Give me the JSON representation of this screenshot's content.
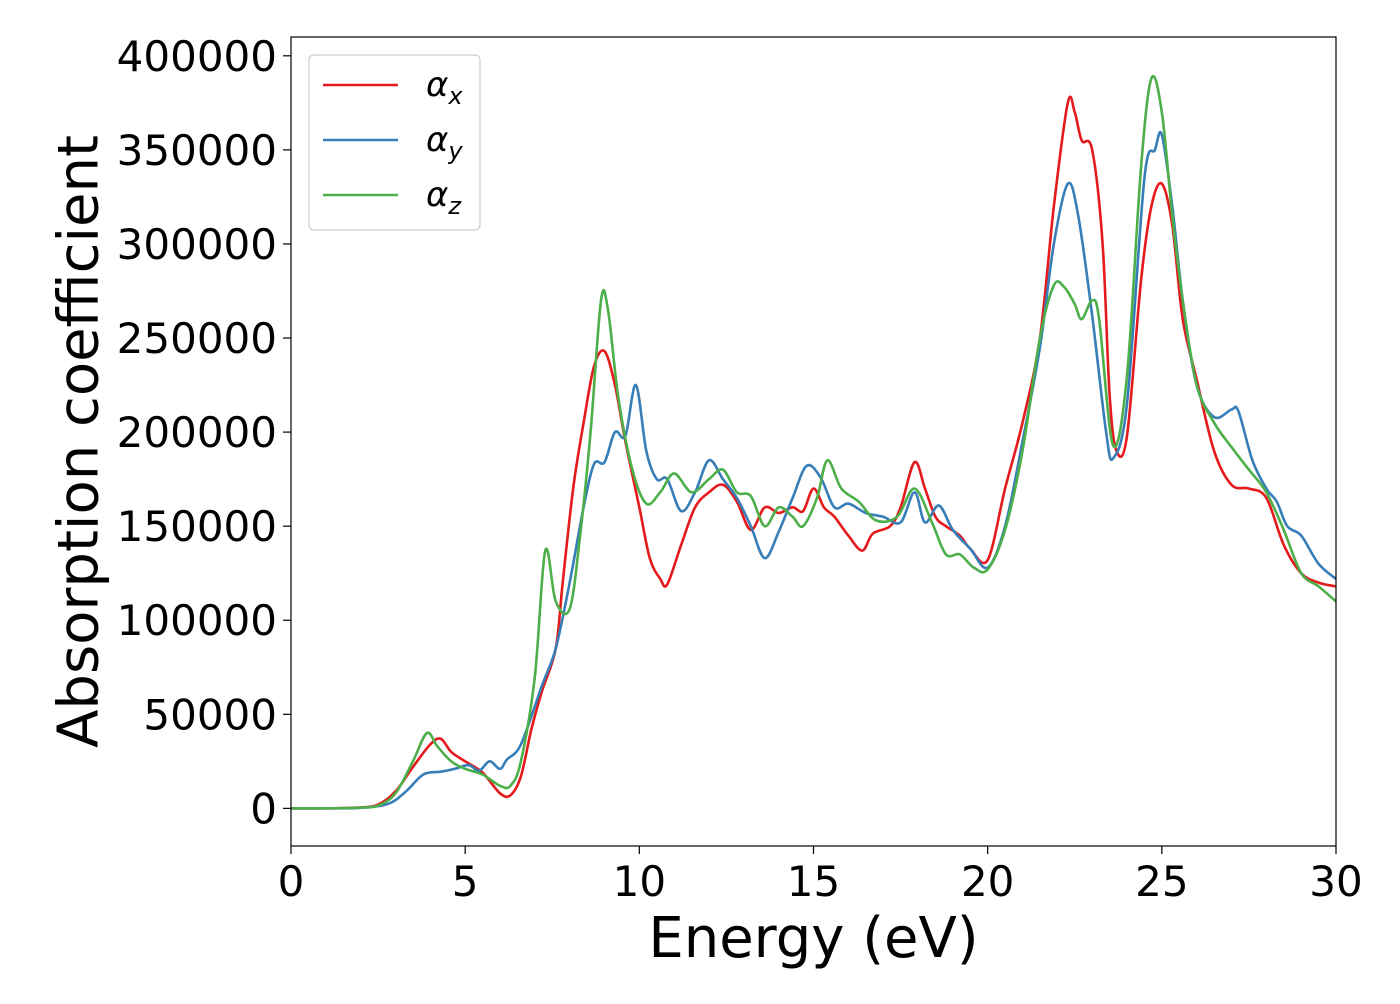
{
  "chart_data": {
    "type": "line",
    "title": "",
    "xlabel": "Energy (eV)",
    "ylabel": "Absorption coefficient",
    "xlim": [
      0,
      30
    ],
    "ylim": [
      -20000,
      410000
    ],
    "xticks": [
      0,
      5,
      10,
      15,
      20,
      25,
      30
    ],
    "xtick_labels": [
      "0",
      "5",
      "10",
      "15",
      "20",
      "25",
      "30"
    ],
    "yticks": [
      0,
      50000,
      100000,
      150000,
      200000,
      250000,
      300000,
      350000,
      400000
    ],
    "ytick_labels": [
      "0",
      "50000",
      "100000",
      "150000",
      "200000",
      "250000",
      "300000",
      "350000",
      "400000"
    ],
    "grid": false,
    "legend_position": "top-left",
    "series": [
      {
        "name": "αx",
        "symbol": "α",
        "subscript": "x",
        "color": "#e41a1c",
        "points": [
          [
            0,
            0
          ],
          [
            1,
            0
          ],
          [
            2,
            500
          ],
          [
            2.5,
            2000
          ],
          [
            3,
            9000
          ],
          [
            3.5,
            22000
          ],
          [
            4,
            34000
          ],
          [
            4.3,
            37000
          ],
          [
            4.6,
            30000
          ],
          [
            5,
            25000
          ],
          [
            5.5,
            19000
          ],
          [
            6,
            8000
          ],
          [
            6.3,
            7000
          ],
          [
            6.6,
            17000
          ],
          [
            6.9,
            42000
          ],
          [
            7.2,
            62000
          ],
          [
            7.6,
            85000
          ],
          [
            7.8,
            120000
          ],
          [
            8.1,
            170000
          ],
          [
            8.4,
            205000
          ],
          [
            8.7,
            235000
          ],
          [
            9,
            243000
          ],
          [
            9.3,
            225000
          ],
          [
            9.6,
            195000
          ],
          [
            10,
            160000
          ],
          [
            10.3,
            133000
          ],
          [
            10.6,
            122000
          ],
          [
            10.8,
            119000
          ],
          [
            11.2,
            140000
          ],
          [
            11.6,
            160000
          ],
          [
            12,
            168000
          ],
          [
            12.4,
            172000
          ],
          [
            12.8,
            163000
          ],
          [
            13.2,
            148000
          ],
          [
            13.6,
            160000
          ],
          [
            14,
            157000
          ],
          [
            14.4,
            160000
          ],
          [
            14.7,
            158000
          ],
          [
            15,
            170000
          ],
          [
            15.3,
            160000
          ],
          [
            15.6,
            155000
          ],
          [
            16,
            145000
          ],
          [
            16.4,
            137000
          ],
          [
            16.7,
            146000
          ],
          [
            17.2,
            150000
          ],
          [
            17.5,
            160000
          ],
          [
            17.9,
            184000
          ],
          [
            18.2,
            170000
          ],
          [
            18.5,
            155000
          ],
          [
            18.8,
            150000
          ],
          [
            19.2,
            145000
          ],
          [
            19.5,
            138000
          ],
          [
            20,
            132000
          ],
          [
            20.5,
            170000
          ],
          [
            21,
            205000
          ],
          [
            21.5,
            250000
          ],
          [
            21.9,
            320000
          ],
          [
            22.3,
            375000
          ],
          [
            22.5,
            370000
          ],
          [
            22.7,
            355000
          ],
          [
            23,
            350000
          ],
          [
            23.3,
            300000
          ],
          [
            23.5,
            220000
          ],
          [
            23.7,
            190000
          ],
          [
            24,
            198000
          ],
          [
            24.4,
            280000
          ],
          [
            24.7,
            320000
          ],
          [
            25,
            332000
          ],
          [
            25.3,
            310000
          ],
          [
            25.6,
            260000
          ],
          [
            26,
            228000
          ],
          [
            26.5,
            190000
          ],
          [
            27,
            172000
          ],
          [
            27.5,
            170000
          ],
          [
            28,
            165000
          ],
          [
            28.5,
            140000
          ],
          [
            29,
            125000
          ],
          [
            29.5,
            120000
          ],
          [
            30,
            118000
          ]
        ]
      },
      {
        "name": "αy",
        "symbol": "α",
        "subscript": "y",
        "color": "#377eb8",
        "points": [
          [
            0,
            0
          ],
          [
            1,
            0
          ],
          [
            2,
            300
          ],
          [
            2.8,
            2500
          ],
          [
            3.3,
            9000
          ],
          [
            3.8,
            18000
          ],
          [
            4.3,
            19500
          ],
          [
            4.7,
            21000
          ],
          [
            5.1,
            23000
          ],
          [
            5.4,
            20000
          ],
          [
            5.7,
            25000
          ],
          [
            6,
            21000
          ],
          [
            6.2,
            26000
          ],
          [
            6.6,
            34000
          ],
          [
            7.2,
            65000
          ],
          [
            7.6,
            85000
          ],
          [
            8,
            120000
          ],
          [
            8.4,
            160000
          ],
          [
            8.7,
            183000
          ],
          [
            9,
            184000
          ],
          [
            9.3,
            200000
          ],
          [
            9.6,
            198000
          ],
          [
            9.9,
            225000
          ],
          [
            10.2,
            190000
          ],
          [
            10.5,
            175000
          ],
          [
            10.8,
            175000
          ],
          [
            11.2,
            158000
          ],
          [
            11.6,
            168000
          ],
          [
            12,
            185000
          ],
          [
            12.4,
            175000
          ],
          [
            12.8,
            165000
          ],
          [
            13.2,
            150000
          ],
          [
            13.6,
            133000
          ],
          [
            14,
            147000
          ],
          [
            14.4,
            165000
          ],
          [
            14.8,
            182000
          ],
          [
            15.2,
            176000
          ],
          [
            15.6,
            160000
          ],
          [
            16,
            162000
          ],
          [
            16.5,
            157000
          ],
          [
            17,
            155000
          ],
          [
            17.5,
            152000
          ],
          [
            17.9,
            168000
          ],
          [
            18.2,
            152000
          ],
          [
            18.6,
            161000
          ],
          [
            19,
            148000
          ],
          [
            19.5,
            138000
          ],
          [
            20,
            128000
          ],
          [
            20.5,
            150000
          ],
          [
            21,
            195000
          ],
          [
            21.5,
            245000
          ],
          [
            21.9,
            300000
          ],
          [
            22.3,
            332000
          ],
          [
            22.6,
            315000
          ],
          [
            23,
            262000
          ],
          [
            23.4,
            200000
          ],
          [
            23.6,
            186000
          ],
          [
            24,
            215000
          ],
          [
            24.5,
            335000
          ],
          [
            24.8,
            350000
          ],
          [
            25,
            358000
          ],
          [
            25.3,
            320000
          ],
          [
            25.6,
            270000
          ],
          [
            26,
            225000
          ],
          [
            26.5,
            208000
          ],
          [
            27,
            212000
          ],
          [
            27.2,
            211000
          ],
          [
            27.6,
            185000
          ],
          [
            28,
            170000
          ],
          [
            28.3,
            163000
          ],
          [
            28.6,
            150000
          ],
          [
            29,
            145000
          ],
          [
            29.5,
            130000
          ],
          [
            30,
            122000
          ]
        ]
      },
      {
        "name": "αz",
        "symbol": "α",
        "subscript": "z",
        "color": "#4daf4a",
        "points": [
          [
            0,
            0
          ],
          [
            1,
            0
          ],
          [
            2,
            400
          ],
          [
            2.5,
            1500
          ],
          [
            3,
            8000
          ],
          [
            3.5,
            25000
          ],
          [
            3.9,
            40000
          ],
          [
            4.2,
            33000
          ],
          [
            4.6,
            25000
          ],
          [
            5,
            21000
          ],
          [
            5.5,
            18000
          ],
          [
            6,
            12000
          ],
          [
            6.3,
            12000
          ],
          [
            6.6,
            25000
          ],
          [
            7,
            70000
          ],
          [
            7.3,
            137000
          ],
          [
            7.6,
            110000
          ],
          [
            8,
            106000
          ],
          [
            8.3,
            145000
          ],
          [
            8.6,
            200000
          ],
          [
            8.9,
            270000
          ],
          [
            9.1,
            265000
          ],
          [
            9.4,
            218000
          ],
          [
            9.8,
            180000
          ],
          [
            10.2,
            162000
          ],
          [
            10.6,
            168000
          ],
          [
            11,
            178000
          ],
          [
            11.5,
            168000
          ],
          [
            12,
            175000
          ],
          [
            12.4,
            180000
          ],
          [
            12.8,
            168000
          ],
          [
            13.2,
            166000
          ],
          [
            13.6,
            150000
          ],
          [
            14,
            160000
          ],
          [
            14.4,
            155000
          ],
          [
            14.7,
            150000
          ],
          [
            15.1,
            165000
          ],
          [
            15.4,
            185000
          ],
          [
            15.8,
            170000
          ],
          [
            16.3,
            163000
          ],
          [
            16.8,
            153000
          ],
          [
            17.4,
            155000
          ],
          [
            17.9,
            170000
          ],
          [
            18.4,
            152000
          ],
          [
            18.8,
            135000
          ],
          [
            19.2,
            135000
          ],
          [
            19.6,
            128000
          ],
          [
            20,
            127000
          ],
          [
            20.5,
            148000
          ],
          [
            21,
            190000
          ],
          [
            21.5,
            250000
          ],
          [
            21.9,
            278000
          ],
          [
            22.2,
            277000
          ],
          [
            22.5,
            268000
          ],
          [
            22.7,
            260000
          ],
          [
            23,
            270000
          ],
          [
            23.2,
            260000
          ],
          [
            23.6,
            193000
          ],
          [
            24,
            230000
          ],
          [
            24.4,
            340000
          ],
          [
            24.7,
            388000
          ],
          [
            25,
            370000
          ],
          [
            25.3,
            315000
          ],
          [
            25.6,
            270000
          ],
          [
            26,
            225000
          ],
          [
            26.5,
            205000
          ],
          [
            27,
            192000
          ],
          [
            27.5,
            180000
          ],
          [
            28,
            168000
          ],
          [
            28.5,
            148000
          ],
          [
            29,
            125000
          ],
          [
            29.5,
            118000
          ],
          [
            30,
            110000
          ]
        ]
      }
    ]
  }
}
